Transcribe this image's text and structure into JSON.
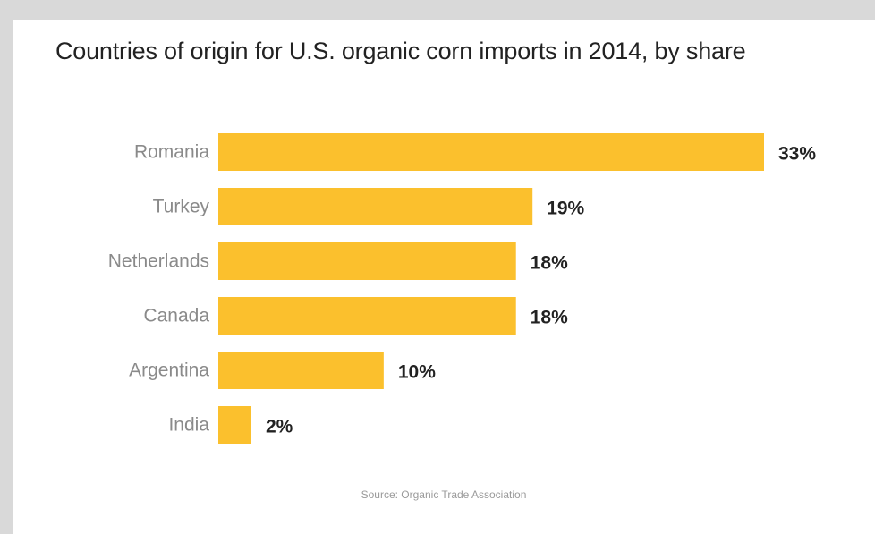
{
  "chart_data": {
    "type": "bar",
    "orientation": "horizontal",
    "title": "Countries of origin for U.S. organic corn imports in 2014, by share",
    "categories": [
      "Romania",
      "Turkey",
      "Netherlands",
      "Canada",
      "Argentina",
      "India"
    ],
    "values": [
      33,
      19,
      18,
      18,
      10,
      2
    ],
    "value_labels": [
      "33%",
      "19%",
      "18%",
      "18%",
      "10%",
      "2%"
    ],
    "unit": "%",
    "xlim": [
      0,
      33
    ],
    "bar_color": "#fbc02d",
    "grid": false,
    "legend": "none",
    "source": "Source: Organic Trade Association"
  }
}
